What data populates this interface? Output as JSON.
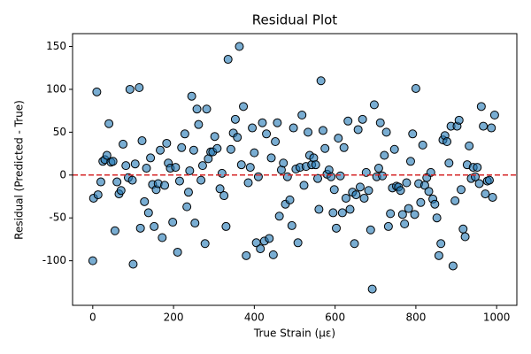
{
  "chart_data": {
    "type": "scatter",
    "title": "Residual Plot",
    "xlabel": "True Strain (με)",
    "ylabel": "Residual (Predicted - True)",
    "xlim": [
      -50,
      1050
    ],
    "ylim": [
      -152,
      165
    ],
    "xticks": [
      0,
      200,
      400,
      600,
      800,
      1000
    ],
    "yticks": [
      -100,
      -50,
      0,
      50,
      100,
      150
    ],
    "color": "#1f77b4",
    "edgecolor": "#000000",
    "hline": {
      "value": 0,
      "color": "#d62728",
      "style": "dashed"
    },
    "x": [
      0,
      2,
      10,
      13,
      20,
      25,
      30,
      35,
      40,
      45,
      50,
      55,
      60,
      65,
      70,
      75,
      82,
      88,
      92,
      98,
      100,
      105,
      115,
      118,
      122,
      128,
      133,
      138,
      143,
      148,
      152,
      157,
      162,
      167,
      172,
      178,
      183,
      187,
      192,
      198,
      205,
      210,
      215,
      220,
      228,
      233,
      237,
      240,
      245,
      250,
      253,
      258,
      262,
      268,
      272,
      278,
      282,
      286,
      292,
      297,
      302,
      308,
      315,
      320,
      325,
      330,
      335,
      342,
      348,
      353,
      358,
      363,
      368,
      373,
      380,
      385,
      390,
      395,
      400,
      405,
      410,
      415,
      420,
      425,
      430,
      437,
      442,
      447,
      452,
      457,
      462,
      467,
      472,
      477,
      482,
      488,
      493,
      497,
      503,
      508,
      513,
      518,
      523,
      528,
      533,
      537,
      542,
      547,
      552,
      557,
      560,
      565,
      570,
      575,
      580,
      585,
      590,
      595,
      598,
      603,
      608,
      613,
      618,
      622,
      627,
      632,
      637,
      643,
      648,
      652,
      657,
      662,
      668,
      672,
      677,
      683,
      688,
      692,
      697,
      703,
      708,
      712,
      717,
      722,
      727,
      732,
      737,
      742,
      747,
      752,
      757,
      762,
      767,
      772,
      777,
      782,
      787,
      792,
      797,
      800,
      807,
      812,
      817,
      822,
      827,
      832,
      837,
      842,
      847,
      852,
      857,
      862,
      867,
      872,
      877,
      882,
      887,
      892,
      897,
      902,
      907,
      912,
      917,
      922,
      927,
      932,
      937,
      942,
      947,
      952,
      957,
      962,
      967,
      972,
      977,
      982,
      987,
      990,
      995
    ],
    "y": [
      -100,
      -27,
      97,
      -23,
      -8,
      16,
      18,
      23,
      60,
      15,
      16,
      -65,
      -8,
      -22,
      -18,
      36,
      11,
      -3,
      100,
      -6,
      -104,
      13,
      102,
      -62,
      40,
      -31,
      8,
      -44,
      20,
      -11,
      -60,
      -17,
      -10,
      29,
      -73,
      -12,
      37,
      14,
      8,
      -55,
      9,
      -90,
      -7,
      32,
      48,
      -37,
      -20,
      5,
      92,
      29,
      -56,
      77,
      59,
      -6,
      11,
      -80,
      77,
      19,
      27,
      27,
      45,
      31,
      -16,
      2,
      -24,
      -60,
      135,
      30,
      49,
      65,
      44,
      150,
      12,
      80,
      -94,
      -9,
      9,
      55,
      26,
      -79,
      -2,
      -86,
      61,
      -77,
      48,
      -74,
      20,
      -93,
      39,
      61,
      -48,
      6,
      14,
      -34,
      -2,
      -29,
      -59,
      55,
      7,
      -79,
      9,
      70,
      -12,
      10,
      50,
      23,
      12,
      20,
      12,
      -4,
      -40,
      110,
      52,
      31,
      1,
      6,
      -2,
      -44,
      -17,
      -62,
      43,
      -1,
      -44,
      32,
      -27,
      63,
      -40,
      -20,
      -80,
      -23,
      53,
      -14,
      65,
      -27,
      3,
      -18,
      -64,
      -133,
      82,
      -2,
      8,
      61,
      -1,
      23,
      50,
      -60,
      -45,
      -15,
      30,
      -13,
      -14,
      -18,
      -46,
      -57,
      -9,
      -39,
      16,
      48,
      -46,
      101,
      -10,
      -32,
      35,
      -12,
      -3,
      -19,
      3,
      -28,
      -34,
      -50,
      -94,
      -80,
      41,
      46,
      39,
      14,
      57,
      -106,
      -30,
      57,
      64,
      -17,
      -63,
      -72,
      12,
      34,
      -4,
      9,
      -2,
      9,
      -10,
      80,
      57,
      -22,
      -7,
      -6,
      55,
      -26,
      70
    ]
  }
}
